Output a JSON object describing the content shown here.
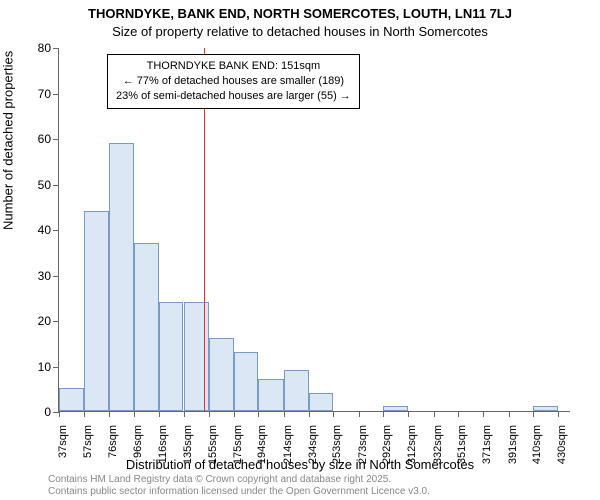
{
  "titles": {
    "main": "THORNDYKE, BANK END, NORTH SOMERCOTES, LOUTH, LN11 7LJ",
    "sub": "Size of property relative to detached houses in North Somercotes"
  },
  "axes": {
    "y_label": "Number of detached properties",
    "x_label": "Distribution of detached houses by size in North Somercotes",
    "ylim": [
      0,
      80
    ],
    "y_ticks": [
      0,
      10,
      20,
      30,
      40,
      50,
      60,
      70,
      80
    ],
    "x_ticks": [
      "37sqm",
      "57sqm",
      "76sqm",
      "96sqm",
      "116sqm",
      "135sqm",
      "155sqm",
      "175sqm",
      "194sqm",
      "214sqm",
      "234sqm",
      "253sqm",
      "273sqm",
      "292sqm",
      "312sqm",
      "332sqm",
      "351sqm",
      "371sqm",
      "391sqm",
      "410sqm",
      "430sqm"
    ],
    "x_domain": [
      37,
      440
    ]
  },
  "bars": {
    "bin_edges": [
      37,
      57,
      76,
      96,
      116,
      135,
      155,
      175,
      194,
      214,
      234,
      253,
      273,
      292,
      312,
      332,
      351,
      371,
      391,
      410,
      430,
      440
    ],
    "values": [
      5,
      44,
      59,
      37,
      24,
      24,
      16,
      13,
      7,
      9,
      4,
      0,
      0,
      1,
      0,
      0,
      0,
      0,
      0,
      1,
      0
    ],
    "fill_color": "#dce7f5",
    "border_color": "#7a9bc4"
  },
  "marker": {
    "x_value": 151,
    "line_color": "#dd3333"
  },
  "annotation": {
    "line1": "THORNDYKE BANK END: 151sqm",
    "line2": "← 77% of detached houses are smaller (189)",
    "line3": "23% of semi-detached houses are larger (55) →"
  },
  "footer": {
    "line1": "Contains HM Land Registry data © Crown copyright and database right 2025.",
    "line2": "Contains public sector information licensed under the Open Government Licence v3.0."
  },
  "style": {
    "background_color": "#ffffff",
    "text_color": "#000000",
    "axis_color": "#666666",
    "footer_color": "#888888",
    "title_fontsize": 13,
    "label_fontsize": 13,
    "tick_fontsize": 12,
    "anno_fontsize": 11,
    "footer_fontsize": 10
  }
}
